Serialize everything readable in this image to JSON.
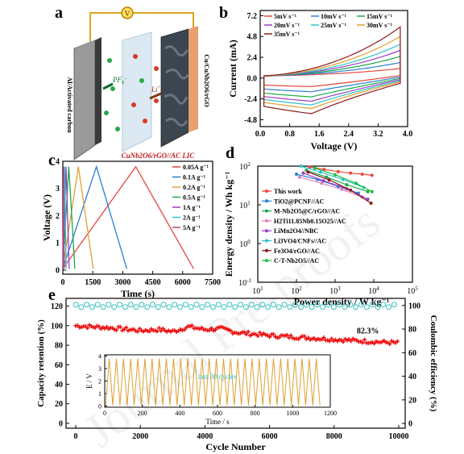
{
  "panel_labels": [
    "a",
    "b",
    "c",
    "d",
    "e"
  ],
  "watermark": "Journal Pre-proofs",
  "schematic": {
    "voltmeter": "V",
    "left_electrode": "Al/Activated carbon",
    "right_electrode": "Cu/CuNb2O6/rGO",
    "ion_pf": "PF",
    "ion_pf_sup": "6",
    "ion_pf_charge": "−",
    "ion_li": "Li",
    "ion_li_charge": "+",
    "caption": "CuNb2O6/rGO//AC LIC"
  },
  "chart_data": [
    {
      "id": "b",
      "type": "line",
      "title": "",
      "xlabel": "Voltage (V)",
      "ylabel": "Current (mA)",
      "xlim": [
        0.0,
        4.0
      ],
      "ylim": [
        -5.6,
        7.8
      ],
      "xticks": [
        "0.0",
        "0.8",
        "1.6",
        "2.4",
        "3.2",
        "4.0"
      ],
      "yticks": [
        "-4.8",
        "-2.4",
        "0.0",
        "2.4",
        "4.8",
        "7.2"
      ],
      "legend_placement": "top",
      "series": [
        {
          "name": "5mV s⁻¹",
          "color": "#e8463c",
          "top_peak": 1.1,
          "bottom_peak": -1.2
        },
        {
          "name": "10mV s⁻¹",
          "color": "#2a7fd4",
          "top_peak": 1.8,
          "bottom_peak": -1.9
        },
        {
          "name": "15mV s⁻¹",
          "color": "#1aa84a",
          "top_peak": 2.5,
          "bottom_peak": -2.6
        },
        {
          "name": "20mV s⁻¹",
          "color": "#9a3fc8",
          "top_peak": 3.2,
          "bottom_peak": -3.2
        },
        {
          "name": "25mV s⁻¹",
          "color": "#2ec2c8",
          "top_peak": 3.9,
          "bottom_peak": -3.7
        },
        {
          "name": "30mV s⁻¹",
          "color": "#e0a030",
          "top_peak": 4.8,
          "bottom_peak": -4.2
        },
        {
          "name": "35mV s⁻¹",
          "color": "#8b1a1a",
          "top_peak": 5.9,
          "bottom_peak": -4.9
        }
      ]
    },
    {
      "id": "c",
      "type": "line",
      "title": "",
      "xlabel": "Time (s)",
      "ylabel": "Voltage (V)",
      "xlim": [
        0,
        7500
      ],
      "ylim": [
        0,
        4
      ],
      "xticks": [
        "0",
        "1500",
        "3000",
        "4500",
        "6000",
        "7500"
      ],
      "yticks": [
        "0",
        "1",
        "2",
        "3",
        "4"
      ],
      "legend_placement": "right",
      "series": [
        {
          "name": "0.05A g⁻¹",
          "color": "#e8463c",
          "x": [
            0,
            3650,
            6550
          ],
          "y": [
            0.05,
            3.8,
            0.05
          ]
        },
        {
          "name": "0.1A g⁻¹",
          "color": "#2a7fd4",
          "x": [
            0,
            1680,
            3200
          ],
          "y": [
            0.05,
            3.8,
            0.05
          ]
        },
        {
          "name": "0.2A g⁻¹",
          "color": "#e0a030",
          "x": [
            0,
            780,
            1520
          ],
          "y": [
            0.05,
            3.8,
            0.05
          ]
        },
        {
          "name": "0.5A g⁻¹",
          "color": "#1aa84a",
          "x": [
            0,
            300,
            600
          ],
          "y": [
            0.05,
            3.8,
            0.05
          ]
        },
        {
          "name": "1A g⁻¹",
          "color": "#9a3fc8",
          "x": [
            0,
            160,
            320
          ],
          "y": [
            0.05,
            3.8,
            0.05
          ]
        },
        {
          "name": "2A g⁻¹",
          "color": "#2ec2c8",
          "x": [
            0,
            85,
            170
          ],
          "y": [
            0.05,
            3.8,
            0.05
          ]
        },
        {
          "name": "5A g⁻¹",
          "color": "#c04080",
          "x": [
            0,
            35,
            70
          ],
          "y": [
            0.05,
            3.8,
            0.05
          ]
        }
      ]
    },
    {
      "id": "d",
      "type": "line",
      "title": "",
      "scale": "log-log",
      "xlabel": "Power density / W kg⁻¹",
      "ylabel": "Energy density / Wh kg⁻¹",
      "xlim": [
        10,
        100000
      ],
      "ylim": [
        0.1,
        100
      ],
      "xticks": [
        {
          "base": "10",
          "exp": "1"
        },
        {
          "base": "10",
          "exp": "2"
        },
        {
          "base": "10",
          "exp": "3"
        },
        {
          "base": "10",
          "exp": "4"
        },
        {
          "base": "10",
          "exp": "5"
        }
      ],
      "yticks": [
        {
          "base": "10",
          "exp": "-1"
        },
        {
          "base": "10",
          "exp": "0"
        },
        {
          "base": "10",
          "exp": "1"
        },
        {
          "base": "10",
          "exp": "2"
        }
      ],
      "legend_placement": "left",
      "series": [
        {
          "name": "This work",
          "color": "#e8463c",
          "x": [
            220,
            520,
            1200,
            2500,
            5000,
            9000
          ],
          "y": [
            95,
            82,
            72,
            66,
            62,
            58
          ]
        },
        {
          "name": "TiO2@PCNF//AC",
          "color": "#2a7fd4",
          "x": [
            100,
            350,
            1200,
            4000
          ],
          "y": [
            62,
            45,
            30,
            20
          ]
        },
        {
          "name": "M-Nb2O5@C/rGO//AC",
          "color": "#1aa84a",
          "x": [
            180,
            600,
            2000,
            7000
          ],
          "y": [
            78,
            52,
            33,
            22
          ]
        },
        {
          "name": "H2Ti11.85Nb0.15O25//AC",
          "color": "#e080c0",
          "x": [
            120,
            450,
            1500,
            5000
          ],
          "y": [
            52,
            36,
            25,
            16
          ]
        },
        {
          "name": "LiMn2O4//NBC",
          "color": "#9a3fc8",
          "x": [
            150,
            500,
            2000,
            7000
          ],
          "y": [
            66,
            42,
            26,
            14
          ]
        },
        {
          "name": "Li3VO4/CNFs//AC",
          "color": "#2ec2c8",
          "x": [
            130,
            420,
            1600,
            5500
          ],
          "y": [
            100,
            70,
            45,
            28
          ]
        },
        {
          "name": "Fe3O4/rGO//AC",
          "color": "#8b1a1a",
          "x": [
            200,
            700,
            2500,
            8500
          ],
          "y": [
            70,
            44,
            24,
            11
          ]
        },
        {
          "name": "C-T-Nb2O5//AC",
          "color": "#20c040",
          "x": [
            300,
            1000,
            3500,
            9000
          ],
          "y": [
            88,
            60,
            36,
            22
          ]
        }
      ]
    },
    {
      "id": "e",
      "type": "scatter",
      "title": "",
      "xlabel": "Cycle Number",
      "ylabel": "Capacity retention (%)",
      "y2label": "Coulombic efficiency (%)",
      "xlim": [
        -300,
        10200
      ],
      "ylim": [
        -5,
        128
      ],
      "y2lim": [
        -4,
        106
      ],
      "xticks": [
        "0",
        "2000",
        "4000",
        "6000",
        "8000",
        "10000"
      ],
      "yticks": [
        "0",
        "20",
        "40",
        "60",
        "80",
        "100",
        "120"
      ],
      "y2ticks": [
        "0",
        "20",
        "40",
        "60",
        "80",
        "100"
      ],
      "annotation": "82.3%",
      "retention": {
        "color": "#ee1010",
        "x": [
          0,
          1000,
          2000,
          2600,
          3000,
          3500,
          4000,
          4500,
          5000,
          6000,
          7000,
          8000,
          9000,
          10000
        ],
        "y": [
          100,
          98,
          95,
          96,
          94,
          99,
          96,
          97,
          93,
          90,
          88,
          86,
          84,
          82.3
        ]
      },
      "efficiency": {
        "color": "#3cc0c0",
        "x": [
          0,
          10000
        ],
        "y": [
          99.7,
          99.7
        ]
      },
      "inset": {
        "xlabel": "Time / s",
        "ylabel": "E / V",
        "note": "last 30 cycles",
        "xlim": [
          0,
          1200
        ],
        "ylim": [
          0,
          4
        ],
        "xticks": [
          "0",
          "200",
          "400",
          "600",
          "800",
          "1000",
          "1200"
        ],
        "yticks": [
          "0",
          "1",
          "2",
          "3",
          "4"
        ],
        "color": "#e0a030",
        "cycles": 30,
        "vmin": 0.05,
        "vmax": 3.8
      }
    }
  ]
}
